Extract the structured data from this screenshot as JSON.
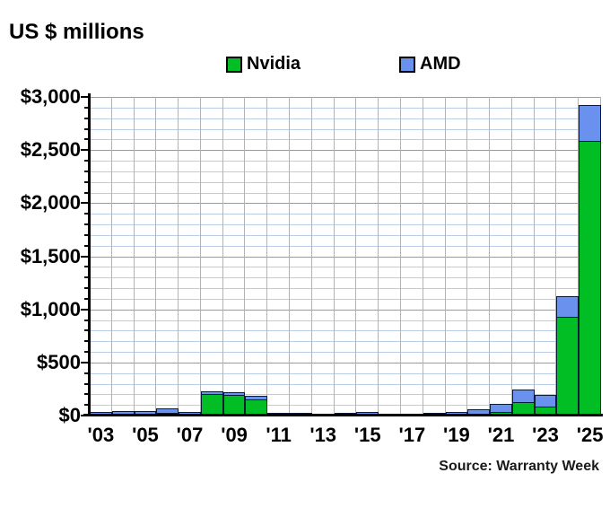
{
  "title": "US $ millions",
  "source": "Source: Warranty Week",
  "colors": {
    "nvidia": "#00be23",
    "amd": "#6b91ef",
    "bar_border": "#0a1c33",
    "grid_minor": "#b9cde6",
    "grid_major": "#9b9b9b",
    "grid_vertical": "#b3b3b3",
    "axis": "#000000"
  },
  "chart_data": {
    "type": "bar",
    "stacked": true,
    "title": "US $ millions",
    "ylabel": "US $ millions",
    "legend_position": "top",
    "grid": true,
    "ylim": [
      0,
      3000
    ],
    "y_major_step": 500,
    "y_minor_step": 100,
    "categories": [
      "'03",
      "'04",
      "'05",
      "'06",
      "'07",
      "'08",
      "'09",
      "'10",
      "'11",
      "'12",
      "'13",
      "'14",
      "'15",
      "'16",
      "'17",
      "'18",
      "'19",
      "'20",
      "'21",
      "'22",
      "'23",
      "'24",
      "'25"
    ],
    "x_tick_labels": [
      "'03",
      "'05",
      "'07",
      "'09",
      "'11",
      "'13",
      "'15",
      "'17",
      "'19",
      "'21",
      "'23",
      "'25"
    ],
    "y_tick_labels": [
      "$0",
      "$500",
      "$1,000",
      "$1,500",
      "$2,000",
      "$2,500",
      "$3,000"
    ],
    "series": [
      {
        "name": "Nvidia",
        "color_key": "nvidia",
        "values": [
          5,
          20,
          20,
          30,
          15,
          205,
          200,
          160,
          5,
          5,
          5,
          15,
          20,
          5,
          5,
          5,
          5,
          10,
          40,
          130,
          90,
          930,
          2590
        ]
      },
      {
        "name": "AMD",
        "color_key": "amd",
        "values": [
          35,
          35,
          35,
          50,
          35,
          35,
          30,
          35,
          25,
          25,
          20,
          25,
          30,
          20,
          20,
          25,
          30,
          60,
          85,
          125,
          120,
          210,
          350
        ]
      }
    ]
  }
}
